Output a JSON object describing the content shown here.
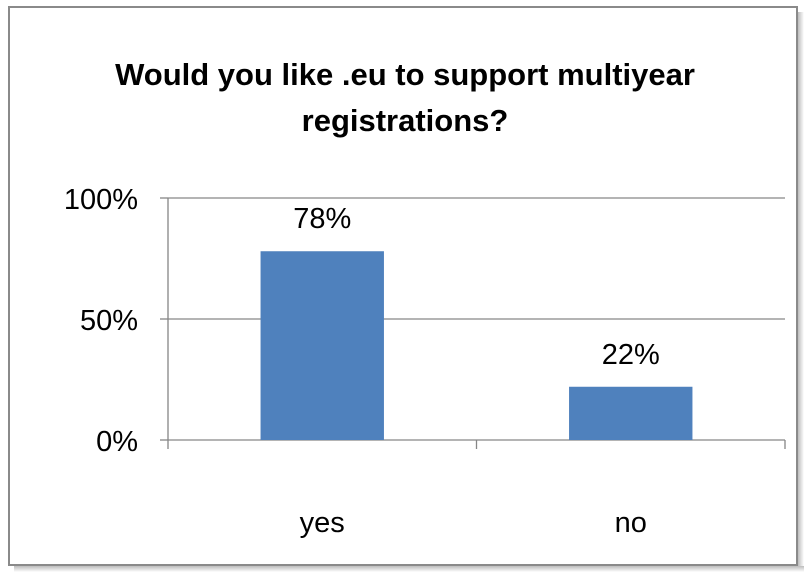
{
  "chart_data": {
    "type": "bar",
    "title": "Would you like .eu to support multiyear registrations?",
    "categories": [
      "yes",
      "no"
    ],
    "series": [
      {
        "values": [
          78,
          22
        ],
        "data_labels": [
          "78%",
          "22%"
        ],
        "color": "#4f81bd"
      }
    ],
    "ylim": [
      0,
      100
    ],
    "y_ticks": [
      0,
      50,
      100
    ],
    "y_tick_labels": [
      "0%",
      "50%",
      "100%"
    ],
    "xlabel": "",
    "ylabel": "",
    "grid": true,
    "legend": "none"
  },
  "colors": {
    "bar": "#4f81bd",
    "gridline": "#868686",
    "axis": "#868686",
    "border": "#8a8a8a"
  }
}
